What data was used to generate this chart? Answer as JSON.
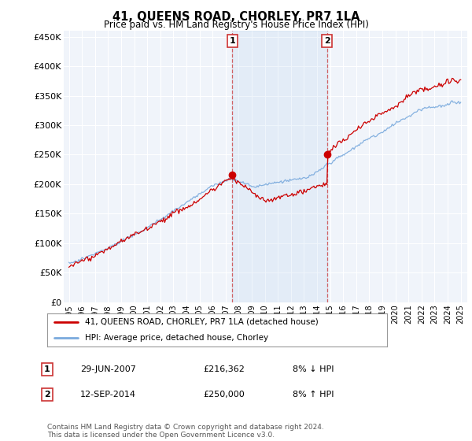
{
  "title": "41, QUEENS ROAD, CHORLEY, PR7 1LA",
  "subtitle": "Price paid vs. HM Land Registry's House Price Index (HPI)",
  "ylim": [
    0,
    460000
  ],
  "yticks": [
    0,
    50000,
    100000,
    150000,
    200000,
    250000,
    300000,
    350000,
    400000,
    450000
  ],
  "ytick_labels": [
    "£0",
    "£50K",
    "£100K",
    "£150K",
    "£200K",
    "£250K",
    "£300K",
    "£350K",
    "£400K",
    "£450K"
  ],
  "plot_bg": "#f0f4fa",
  "red_color": "#cc0000",
  "blue_color": "#7aaadd",
  "sale1_year": 2007.5,
  "sale1_value": 216362,
  "sale2_year": 2014.75,
  "sale2_value": 250000,
  "legend_label1": "41, QUEENS ROAD, CHORLEY, PR7 1LA (detached house)",
  "legend_label2": "HPI: Average price, detached house, Chorley",
  "table_row1": [
    "1",
    "29-JUN-2007",
    "£216,362",
    "8% ↓ HPI"
  ],
  "table_row2": [
    "2",
    "12-SEP-2014",
    "£250,000",
    "8% ↑ HPI"
  ],
  "footer": "Contains HM Land Registry data © Crown copyright and database right 2024.\nThis data is licensed under the Open Government Licence v3.0."
}
